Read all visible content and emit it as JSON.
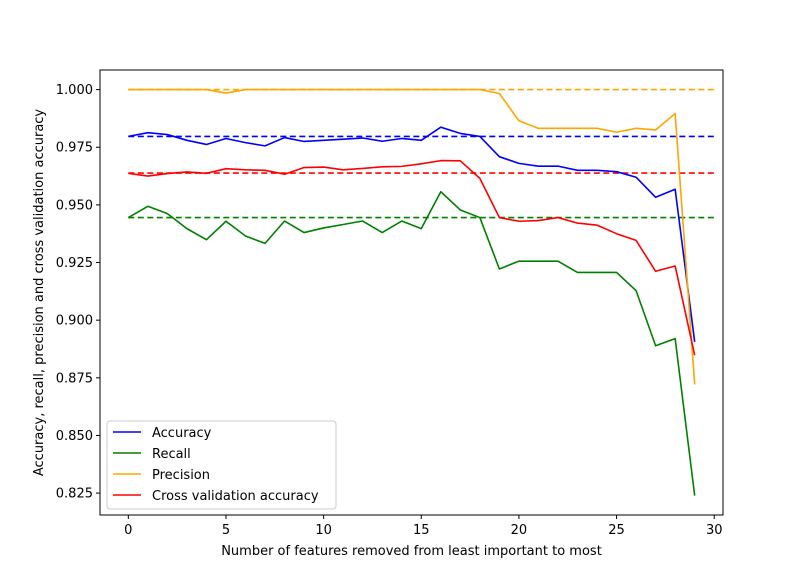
{
  "chart_data": {
    "type": "line",
    "title": "",
    "xlabel": "Number of features removed from least important to most",
    "ylabel": "Accuracy, recall, precision and cross validation accuracy",
    "xlim": [
      -1.45,
      30.45
    ],
    "ylim": [
      0.8155,
      1.0085
    ],
    "xticks": [
      0,
      5,
      10,
      15,
      20,
      25,
      30
    ],
    "yticks": [
      0.825,
      0.85,
      0.875,
      0.9,
      0.925,
      0.95,
      0.975,
      1.0
    ],
    "xtick_labels": [
      "0",
      "5",
      "10",
      "15",
      "20",
      "25",
      "30"
    ],
    "ytick_labels": [
      "0.825",
      "0.850",
      "0.875",
      "0.900",
      "0.925",
      "0.950",
      "0.975",
      "1.000"
    ],
    "grid": false,
    "legend_position": "bottom-left",
    "x": [
      0,
      1,
      2,
      3,
      4,
      5,
      6,
      7,
      8,
      9,
      10,
      11,
      12,
      13,
      14,
      15,
      16,
      17,
      18,
      19,
      20,
      21,
      22,
      23,
      24,
      25,
      26,
      27,
      28,
      29
    ],
    "series": [
      {
        "name": "Accuracy",
        "color": "#0000ff",
        "values": [
          0.9797,
          0.9813,
          0.9805,
          0.978,
          0.9762,
          0.9788,
          0.977,
          0.9756,
          0.9792,
          0.9775,
          0.978,
          0.9785,
          0.979,
          0.9776,
          0.9788,
          0.978,
          0.9837,
          0.981,
          0.9797,
          0.9709,
          0.968,
          0.9668,
          0.9668,
          0.965,
          0.965,
          0.9644,
          0.962,
          0.9533,
          0.9568,
          0.8906
        ],
        "baseline": 0.9797
      },
      {
        "name": "Recall",
        "color": "#008000",
        "values": [
          0.9445,
          0.9494,
          0.9462,
          0.9397,
          0.9349,
          0.9429,
          0.9365,
          0.9333,
          0.943,
          0.938,
          0.94,
          0.9415,
          0.943,
          0.938,
          0.943,
          0.9397,
          0.9557,
          0.9478,
          0.9445,
          0.9222,
          0.9256,
          0.9256,
          0.9256,
          0.9207,
          0.9207,
          0.9207,
          0.9128,
          0.8889,
          0.892,
          0.8239
        ],
        "baseline": 0.9445
      },
      {
        "name": "Precision",
        "color": "#ffa500",
        "values": [
          1.0,
          1.0,
          1.0,
          1.0,
          1.0,
          0.9985,
          1.0,
          1.0,
          1.0,
          1.0,
          1.0,
          1.0,
          1.0,
          1.0,
          1.0,
          1.0,
          1.0,
          1.0,
          1.0,
          0.9983,
          0.9865,
          0.9832,
          0.9832,
          0.9832,
          0.9832,
          0.9815,
          0.9832,
          0.9825,
          0.9896,
          0.8721
        ],
        "baseline": 1.0
      },
      {
        "name": "Cross validation accuracy",
        "color": "#ff0000",
        "values": [
          0.9637,
          0.9625,
          0.9636,
          0.9643,
          0.9637,
          0.9657,
          0.9652,
          0.965,
          0.9633,
          0.9662,
          0.9664,
          0.9652,
          0.9658,
          0.9665,
          0.9667,
          0.9678,
          0.9692,
          0.9691,
          0.9615,
          0.9445,
          0.9429,
          0.9432,
          0.9445,
          0.9421,
          0.9412,
          0.9375,
          0.9346,
          0.9212,
          0.9235,
          0.8848
        ],
        "baseline": 0.9638
      }
    ]
  }
}
